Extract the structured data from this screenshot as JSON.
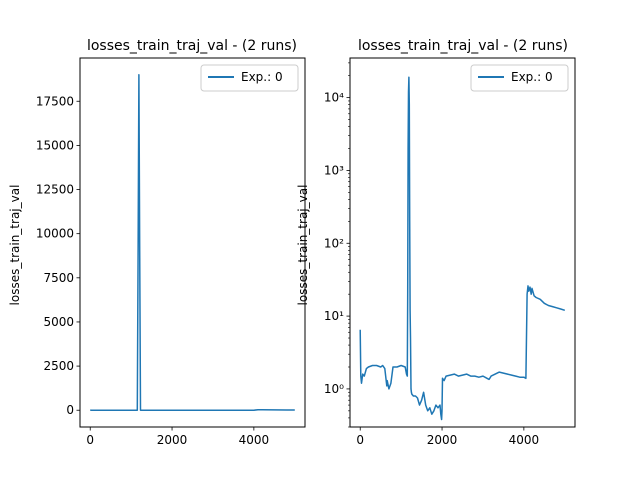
{
  "colors": {
    "series": "#1f77b4",
    "axes": "#000000",
    "background": "#ffffff"
  },
  "chart_data": [
    {
      "type": "line",
      "title": "losses_train_traj_val - (2 runs)",
      "xlabel": "",
      "ylabel": "losses_train_traj_val",
      "yscale": "linear",
      "xlim": [
        -250,
        5250
      ],
      "ylim": [
        -950,
        19950
      ],
      "xticks": [
        0,
        2000,
        4000
      ],
      "xtick_labels": [
        "0",
        "2000",
        "4000"
      ],
      "yticks": [
        0,
        2500,
        5000,
        7500,
        10000,
        12500,
        15000,
        17500
      ],
      "ytick_labels": [
        "0",
        "2500",
        "5000",
        "7500",
        "10000",
        "12500",
        "15000",
        "17500"
      ],
      "grid": false,
      "legend": {
        "position": "top-right",
        "entries": [
          "Exp.: 0"
        ]
      },
      "series": [
        {
          "name": "Exp.: 0",
          "x": [
            0,
            30,
            100,
            300,
            500,
            700,
            900,
            1100,
            1150,
            1170,
            1190,
            1210,
            1230,
            1250,
            1400,
            1600,
            1800,
            2000,
            2500,
            3000,
            3500,
            4000,
            4100,
            4200,
            4500,
            4800,
            5000
          ],
          "y": [
            6.5,
            1.5,
            2,
            2,
            1.8,
            1.2,
            2,
            2,
            1.5,
            9000,
            19000,
            9000,
            1,
            0.6,
            0.5,
            0.5,
            0.55,
            1.4,
            1.6,
            1.5,
            1.7,
            1.5,
            26,
            22,
            16,
            13,
            12
          ]
        }
      ]
    },
    {
      "type": "line",
      "title": "losses_train_traj_val - (2 runs)",
      "xlabel": "",
      "ylabel": "losses_train_traj_val",
      "yscale": "log",
      "xlim": [
        -250,
        5250
      ],
      "ylim": [
        0.3,
        35000
      ],
      "xticks": [
        0,
        2000,
        4000
      ],
      "xtick_labels": [
        "0",
        "2000",
        "4000"
      ],
      "yticks": [
        1,
        10,
        100,
        1000,
        10000
      ],
      "ytick_labels": [
        "10⁰",
        "10¹",
        "10²",
        "10³",
        "10⁴"
      ],
      "grid": false,
      "legend": {
        "position": "top-right",
        "entries": [
          "Exp.: 0"
        ]
      },
      "series": [
        {
          "name": "Exp.: 0",
          "x": [
            0,
            15,
            30,
            60,
            100,
            150,
            200,
            300,
            400,
            500,
            550,
            600,
            650,
            660,
            700,
            750,
            800,
            850,
            900,
            1000,
            1100,
            1130,
            1150,
            1160,
            1170,
            1180,
            1190,
            1200,
            1210,
            1220,
            1230,
            1240,
            1250,
            1260,
            1300,
            1350,
            1400,
            1450,
            1500,
            1550,
            1600,
            1650,
            1700,
            1750,
            1800,
            1850,
            1900,
            1950,
            1970,
            1990,
            2000,
            2010,
            2050,
            2100,
            2200,
            2300,
            2400,
            2500,
            2600,
            2700,
            2800,
            2900,
            3000,
            3100,
            3150,
            3200,
            3300,
            3400,
            3500,
            3600,
            3700,
            3800,
            3900,
            4000,
            4050,
            4080,
            4100,
            4120,
            4150,
            4180,
            4200,
            4250,
            4300,
            4400,
            4500,
            4600,
            4700,
            4800,
            4900,
            5000
          ],
          "y": [
            6.5,
            1.5,
            1.2,
            1.6,
            1.5,
            1.9,
            2,
            2.1,
            2.1,
            2.0,
            2.1,
            1.9,
            1.1,
            1.3,
            1.0,
            1.2,
            2.0,
            2.0,
            2.0,
            2.1,
            2.0,
            1.6,
            1.5,
            20,
            2000,
            12000,
            19000,
            8000,
            200,
            12,
            5,
            1.0,
            0.9,
            0.85,
            0.8,
            0.8,
            0.75,
            0.6,
            0.7,
            0.9,
            0.6,
            0.5,
            0.55,
            0.45,
            0.5,
            0.6,
            0.55,
            0.6,
            0.45,
            0.38,
            0.5,
            1.4,
            1.3,
            1.5,
            1.55,
            1.6,
            1.5,
            1.55,
            1.6,
            1.5,
            1.5,
            1.45,
            1.5,
            1.4,
            1.35,
            1.5,
            1.6,
            1.7,
            1.65,
            1.6,
            1.55,
            1.5,
            1.45,
            1.45,
            1.4,
            20,
            26,
            22,
            25,
            20,
            24,
            19,
            18,
            17,
            15,
            14,
            13.5,
            13,
            12.5,
            12
          ]
        }
      ]
    }
  ]
}
